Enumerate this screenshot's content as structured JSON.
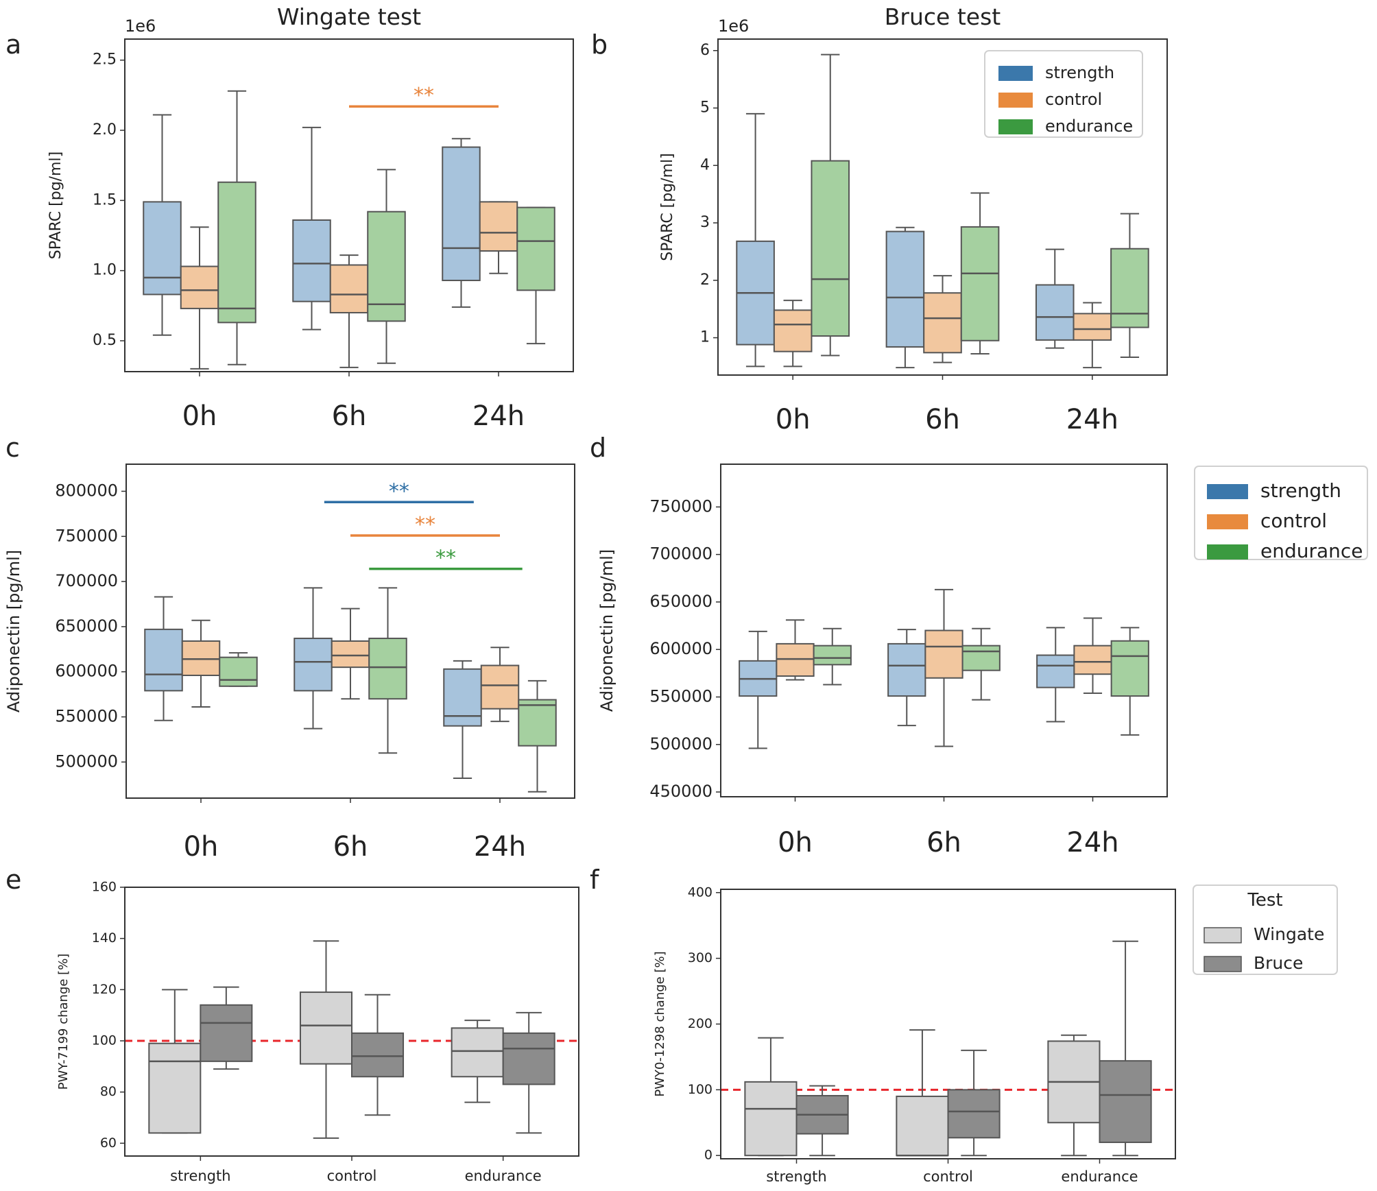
{
  "colors": {
    "strength_fill": "#a7c3dc",
    "control_fill": "#f2c79f",
    "endurance_fill": "#a5d0a0",
    "strength_line": "#2f6fa5",
    "control_line": "#e8843c",
    "endurance_line": "#3a9a3e",
    "legend_strength": "#3b78ab",
    "legend_control": "#e88a3d",
    "legend_endurance": "#3b9a40",
    "wingate_fill": "#d5d5d5",
    "bruce_fill": "#8c8c8c",
    "whisker": "#555555",
    "reference_line": "#e8262b"
  },
  "chart_data": [
    {
      "id": "a",
      "panel_label": "a",
      "type": "box",
      "title": "Wingate test",
      "ylabel": "SPARC [pg/ml]",
      "offset_text": "1e6",
      "ylim": [
        0.28,
        2.65
      ],
      "yticks": [
        0.5,
        1.0,
        1.5,
        2.0,
        2.5
      ],
      "ytick_labels": [
        "0.5",
        "1.0",
        "1.5",
        "2.0",
        "2.5"
      ],
      "categories": [
        "0h",
        "6h",
        "24h"
      ],
      "series": [
        {
          "name": "strength",
          "boxes": [
            {
              "whislo": 0.54,
              "q1": 0.83,
              "med": 0.95,
              "q3": 1.49,
              "whishi": 2.11
            },
            {
              "whislo": 0.58,
              "q1": 0.78,
              "med": 1.05,
              "q3": 1.36,
              "whishi": 2.02
            },
            {
              "whislo": 0.74,
              "q1": 0.93,
              "med": 1.16,
              "q3": 1.88,
              "whishi": 1.94
            }
          ]
        },
        {
          "name": "control",
          "boxes": [
            {
              "whislo": 0.3,
              "q1": 0.73,
              "med": 0.86,
              "q3": 1.03,
              "whishi": 1.31
            },
            {
              "whislo": 0.31,
              "q1": 0.7,
              "med": 0.83,
              "q3": 1.04,
              "whishi": 1.11
            },
            {
              "whislo": 0.98,
              "q1": 1.14,
              "med": 1.27,
              "q3": 1.49,
              "whishi": 1.49
            }
          ]
        },
        {
          "name": "endurance",
          "boxes": [
            {
              "whislo": 0.33,
              "q1": 0.63,
              "med": 0.73,
              "q3": 1.63,
              "whishi": 2.28
            },
            {
              "whislo": 0.34,
              "q1": 0.64,
              "med": 0.76,
              "q3": 1.42,
              "whishi": 1.72
            },
            {
              "whislo": 0.48,
              "q1": 0.86,
              "med": 1.21,
              "q3": 1.45,
              "whishi": 1.45
            }
          ]
        }
      ],
      "significance": [
        {
          "series": "control",
          "from": "6h",
          "to": "24h",
          "y": 2.17,
          "label": "**"
        }
      ],
      "legend": {
        "show": false
      }
    },
    {
      "id": "b",
      "panel_label": "b",
      "type": "box",
      "title": "Bruce test",
      "ylabel": "SPARC [pg/ml]",
      "offset_text": "1e6",
      "ylim": [
        0.35,
        6.2
      ],
      "yticks": [
        1,
        2,
        3,
        4,
        5,
        6
      ],
      "ytick_labels": [
        "1",
        "2",
        "3",
        "4",
        "5",
        "6"
      ],
      "categories": [
        "0h",
        "6h",
        "24h"
      ],
      "series": [
        {
          "name": "strength",
          "boxes": [
            {
              "whislo": 0.5,
              "q1": 0.88,
              "med": 1.78,
              "q3": 2.68,
              "whishi": 4.9
            },
            {
              "whislo": 0.48,
              "q1": 0.84,
              "med": 1.7,
              "q3": 2.85,
              "whishi": 2.92
            },
            {
              "whislo": 0.82,
              "q1": 0.96,
              "med": 1.36,
              "q3": 1.92,
              "whishi": 2.54
            }
          ]
        },
        {
          "name": "control",
          "boxes": [
            {
              "whislo": 0.5,
              "q1": 0.76,
              "med": 1.23,
              "q3": 1.48,
              "whishi": 1.65
            },
            {
              "whislo": 0.57,
              "q1": 0.74,
              "med": 1.34,
              "q3": 1.78,
              "whishi": 2.08
            },
            {
              "whislo": 0.48,
              "q1": 0.96,
              "med": 1.15,
              "q3": 1.42,
              "whishi": 1.61
            }
          ]
        },
        {
          "name": "endurance",
          "boxes": [
            {
              "whislo": 0.69,
              "q1": 1.03,
              "med": 2.02,
              "q3": 4.08,
              "whishi": 5.93
            },
            {
              "whislo": 0.72,
              "q1": 0.95,
              "med": 2.12,
              "q3": 2.93,
              "whishi": 3.52
            },
            {
              "whislo": 0.66,
              "q1": 1.18,
              "med": 1.42,
              "q3": 2.55,
              "whishi": 3.16
            }
          ]
        }
      ],
      "significance": [],
      "legend": {
        "show": true,
        "title": "",
        "position": "upper-right",
        "entries": [
          "strength",
          "control",
          "endurance"
        ]
      }
    },
    {
      "id": "c",
      "panel_label": "c",
      "type": "box",
      "title": "",
      "ylabel": "Adiponectin [pg/ml]",
      "offset_text": "",
      "ylim": [
        460000,
        830000
      ],
      "yticks": [
        500000,
        550000,
        600000,
        650000,
        700000,
        750000,
        800000
      ],
      "ytick_labels": [
        "500000",
        "550000",
        "600000",
        "650000",
        "700000",
        "750000",
        "800000"
      ],
      "categories": [
        "0h",
        "6h",
        "24h"
      ],
      "series": [
        {
          "name": "strength",
          "boxes": [
            {
              "whislo": 546000,
              "q1": 579000,
              "med": 597000,
              "q3": 647000,
              "whishi": 683000
            },
            {
              "whislo": 537000,
              "q1": 579000,
              "med": 611000,
              "q3": 637000,
              "whishi": 693000
            },
            {
              "whislo": 482000,
              "q1": 540000,
              "med": 551000,
              "q3": 603000,
              "whishi": 612000
            }
          ]
        },
        {
          "name": "control",
          "boxes": [
            {
              "whislo": 561000,
              "q1": 596000,
              "med": 614000,
              "q3": 634000,
              "whishi": 657000
            },
            {
              "whislo": 570000,
              "q1": 605000,
              "med": 618000,
              "q3": 634000,
              "whishi": 670000
            },
            {
              "whislo": 545000,
              "q1": 559000,
              "med": 585000,
              "q3": 607000,
              "whishi": 627000
            }
          ]
        },
        {
          "name": "endurance",
          "boxes": [
            {
              "whislo": 584000,
              "q1": 584000,
              "med": 591000,
              "q3": 616000,
              "whishi": 621000
            },
            {
              "whislo": 510000,
              "q1": 570000,
              "med": 605000,
              "q3": 637000,
              "whishi": 693000
            },
            {
              "whislo": 467000,
              "q1": 518000,
              "med": 563000,
              "q3": 569000,
              "whishi": 590000
            }
          ]
        }
      ],
      "significance": [
        {
          "series": "strength",
          "from": "6h",
          "to": "24h",
          "y": 788000,
          "label": "**"
        },
        {
          "series": "control",
          "from": "6h",
          "to": "24h",
          "y": 751000,
          "label": "**"
        },
        {
          "series": "endurance",
          "from": "6h",
          "to": "24h",
          "y": 714000,
          "label": "**"
        }
      ],
      "legend": {
        "show": false
      }
    },
    {
      "id": "d",
      "panel_label": "d",
      "type": "box",
      "title": "",
      "ylabel": "Adiponectin [pg/ml]",
      "offset_text": "",
      "ylim": [
        445000,
        795000
      ],
      "yticks": [
        450000,
        500000,
        550000,
        600000,
        650000,
        700000,
        750000
      ],
      "ytick_labels": [
        "450000",
        "500000",
        "550000",
        "600000",
        "650000",
        "700000",
        "750000"
      ],
      "categories": [
        "0h",
        "6h",
        "24h"
      ],
      "series": [
        {
          "name": "strength",
          "boxes": [
            {
              "whislo": 496000,
              "q1": 551000,
              "med": 569000,
              "q3": 588000,
              "whishi": 619000
            },
            {
              "whislo": 520000,
              "q1": 551000,
              "med": 583000,
              "q3": 606000,
              "whishi": 621000
            },
            {
              "whislo": 524000,
              "q1": 560000,
              "med": 583000,
              "q3": 594000,
              "whishi": 623000
            }
          ]
        },
        {
          "name": "control",
          "boxes": [
            {
              "whislo": 568000,
              "q1": 572000,
              "med": 590000,
              "q3": 606000,
              "whishi": 631000
            },
            {
              "whislo": 498000,
              "q1": 570000,
              "med": 603000,
              "q3": 620000,
              "whishi": 663000
            },
            {
              "whislo": 554000,
              "q1": 574000,
              "med": 587000,
              "q3": 604000,
              "whishi": 633000
            }
          ]
        },
        {
          "name": "endurance",
          "boxes": [
            {
              "whislo": 563000,
              "q1": 584000,
              "med": 591000,
              "q3": 604000,
              "whishi": 622000
            },
            {
              "whislo": 547000,
              "q1": 578000,
              "med": 598000,
              "q3": 604000,
              "whishi": 622000
            },
            {
              "whislo": 510000,
              "q1": 551000,
              "med": 593000,
              "q3": 609000,
              "whishi": 623000
            }
          ]
        }
      ],
      "significance": [],
      "legend": {
        "show": true,
        "title": "",
        "position": "outside-right",
        "entries": [
          "strength",
          "control",
          "endurance"
        ]
      }
    },
    {
      "id": "e",
      "panel_label": "e",
      "type": "box",
      "title": "",
      "ylabel": "PWY-7199 change [%]",
      "offset_text": "",
      "ylim": [
        55,
        160
      ],
      "yticks": [
        60,
        80,
        100,
        120,
        140,
        160
      ],
      "ytick_labels": [
        "60",
        "80",
        "100",
        "120",
        "140",
        "160"
      ],
      "categories": [
        "strength",
        "control",
        "endurance"
      ],
      "series": [
        {
          "name": "Wingate",
          "boxes": [
            {
              "whislo": 64,
              "q1": 64,
              "med": 92,
              "q3": 99,
              "whishi": 120
            },
            {
              "whislo": 62,
              "q1": 91,
              "med": 106,
              "q3": 119,
              "whishi": 139
            },
            {
              "whislo": 76,
              "q1": 86,
              "med": 96,
              "q3": 105,
              "whishi": 108
            }
          ]
        },
        {
          "name": "Bruce",
          "boxes": [
            {
              "whislo": 89,
              "q1": 92,
              "med": 107,
              "q3": 114,
              "whishi": 121
            },
            {
              "whislo": 71,
              "q1": 86,
              "med": 94,
              "q3": 103,
              "whishi": 118
            },
            {
              "whislo": 64,
              "q1": 83,
              "med": 97,
              "q3": 103,
              "whishi": 111
            }
          ]
        }
      ],
      "reference_line": 100,
      "significance": [],
      "legend": {
        "show": false
      }
    },
    {
      "id": "f",
      "panel_label": "f",
      "type": "box",
      "title": "",
      "ylabel": "PWY0-1298 change [%]",
      "offset_text": "",
      "ylim": [
        -5,
        405
      ],
      "yticks": [
        0,
        100,
        200,
        300,
        400
      ],
      "ytick_labels": [
        "0",
        "100",
        "200",
        "300",
        "400"
      ],
      "categories": [
        "strength",
        "control",
        "endurance"
      ],
      "series": [
        {
          "name": "Wingate",
          "boxes": [
            {
              "whislo": 0,
              "q1": 0,
              "med": 71,
              "q3": 112,
              "whishi": 179
            },
            {
              "whislo": 0,
              "q1": 0,
              "med": 0,
              "q3": 90,
              "whishi": 191
            },
            {
              "whislo": 0,
              "q1": 50,
              "med": 112,
              "q3": 174,
              "whishi": 183
            }
          ]
        },
        {
          "name": "Bruce",
          "boxes": [
            {
              "whislo": 0,
              "q1": 33,
              "med": 62,
              "q3": 91,
              "whishi": 106
            },
            {
              "whislo": 0,
              "q1": 27,
              "med": 67,
              "q3": 100,
              "whishi": 160
            },
            {
              "whislo": 0,
              "q1": 20,
              "med": 92,
              "q3": 144,
              "whishi": 326
            }
          ]
        }
      ],
      "reference_line": 100,
      "significance": [],
      "legend": {
        "show": true,
        "title": "Test",
        "position": "outside-right",
        "entries": [
          "Wingate",
          "Bruce"
        ]
      }
    }
  ]
}
